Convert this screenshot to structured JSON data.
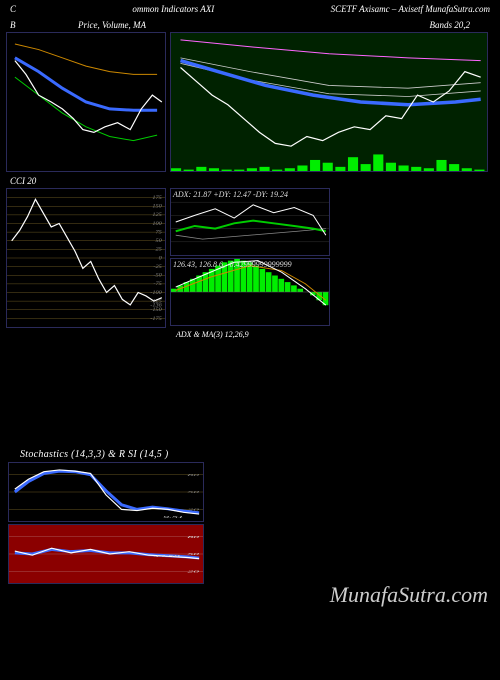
{
  "header": {
    "left": "C",
    "mid": "ommon Indicators AXI",
    "right": "SCETF Axisamc – Axisetf MunafaSutra.com"
  },
  "titles": {
    "row1_left": "B",
    "row1_mid": "Price, Volume, MA",
    "row1_right": "Bands 20,2",
    "cci": "CCI 20",
    "adx": "ADX  & MA(3) 12,26,9",
    "adx_sub": "ADX: 21.87 +DY: 12.47 -DY: 19.24",
    "macd": "126.43,  126.8          6,  -0.42999999999999",
    "stoch": "Stochastics                        (14,3,3) & R                        SI                                   (14,5                                       )"
  },
  "watermark": "MunafaSutra.com",
  "colors": {
    "bg": "#000000",
    "panel_border": "#2a2a5a",
    "green_bg": "#002200",
    "white_line": "#ffffff",
    "blue_line": "#3a6aff",
    "green_line": "#00cc00",
    "orange_line": "#cc8800",
    "magenta": "#ff66ff",
    "vol_green": "#00ee00",
    "grid": "#665522",
    "red_bg": "#8b0000"
  },
  "charts": {
    "top_left": {
      "xlim": [
        0,
        100
      ],
      "ylim": [
        0,
        100
      ],
      "white": [
        [
          5,
          80
        ],
        [
          12,
          70
        ],
        [
          20,
          55
        ],
        [
          28,
          50
        ],
        [
          35,
          45
        ],
        [
          42,
          38
        ],
        [
          48,
          30
        ],
        [
          55,
          28
        ],
        [
          62,
          32
        ],
        [
          70,
          35
        ],
        [
          78,
          30
        ],
        [
          85,
          45
        ],
        [
          92,
          55
        ],
        [
          98,
          50
        ]
      ],
      "blue": [
        [
          5,
          82
        ],
        [
          20,
          72
        ],
        [
          35,
          60
        ],
        [
          50,
          50
        ],
        [
          65,
          45
        ],
        [
          80,
          44
        ],
        [
          95,
          44
        ]
      ],
      "green": [
        [
          5,
          68
        ],
        [
          20,
          55
        ],
        [
          35,
          42
        ],
        [
          50,
          32
        ],
        [
          65,
          25
        ],
        [
          80,
          22
        ],
        [
          95,
          26
        ]
      ],
      "orange": [
        [
          5,
          92
        ],
        [
          20,
          88
        ],
        [
          35,
          82
        ],
        [
          50,
          76
        ],
        [
          65,
          72
        ],
        [
          80,
          70
        ],
        [
          95,
          70
        ]
      ],
      "line_widths": {
        "white": 1.2,
        "blue": 3,
        "green": 1,
        "orange": 1
      }
    },
    "top_right": {
      "xlim": [
        0,
        100
      ],
      "ylim": [
        0,
        100
      ],
      "white": [
        [
          3,
          75
        ],
        [
          8,
          65
        ],
        [
          13,
          55
        ],
        [
          18,
          48
        ],
        [
          23,
          38
        ],
        [
          28,
          28
        ],
        [
          33,
          20
        ],
        [
          38,
          18
        ],
        [
          43,
          25
        ],
        [
          48,
          22
        ],
        [
          53,
          28
        ],
        [
          58,
          32
        ],
        [
          63,
          30
        ],
        [
          68,
          40
        ],
        [
          73,
          38
        ],
        [
          78,
          55
        ],
        [
          83,
          50
        ],
        [
          88,
          58
        ],
        [
          93,
          72
        ],
        [
          98,
          68
        ]
      ],
      "blue": [
        [
          3,
          80
        ],
        [
          15,
          72
        ],
        [
          30,
          62
        ],
        [
          45,
          55
        ],
        [
          60,
          50
        ],
        [
          75,
          48
        ],
        [
          90,
          50
        ],
        [
          98,
          52
        ]
      ],
      "thin1": [
        [
          3,
          78
        ],
        [
          25,
          66
        ],
        [
          50,
          56
        ],
        [
          75,
          54
        ],
        [
          98,
          58
        ]
      ],
      "thin2": [
        [
          3,
          82
        ],
        [
          25,
          72
        ],
        [
          50,
          62
        ],
        [
          75,
          60
        ],
        [
          98,
          64
        ]
      ],
      "magenta": [
        [
          3,
          95
        ],
        [
          25,
          90
        ],
        [
          50,
          85
        ],
        [
          75,
          82
        ],
        [
          98,
          80
        ]
      ],
      "volume_bars": [
        2,
        1,
        3,
        2,
        1,
        1,
        2,
        3,
        1,
        2,
        4,
        8,
        6,
        3,
        10,
        5,
        12,
        6,
        4,
        3,
        2,
        8,
        5,
        2,
        1
      ],
      "vol_max": 20,
      "line_widths": {
        "white": 1.2,
        "blue": 3.5,
        "thin": 0.8,
        "magenta": 1
      }
    },
    "cci": {
      "xlim": [
        0,
        100
      ],
      "ylim": [
        -200,
        200
      ],
      "ticks": [
        175,
        150,
        125,
        100,
        75,
        50,
        25,
        0,
        -25,
        -50,
        -75,
        -100,
        -125,
        -136,
        -150,
        -175
      ],
      "line": [
        [
          3,
          50
        ],
        [
          8,
          80
        ],
        [
          13,
          120
        ],
        [
          18,
          170
        ],
        [
          23,
          130
        ],
        [
          28,
          90
        ],
        [
          33,
          100
        ],
        [
          38,
          60
        ],
        [
          43,
          20
        ],
        [
          48,
          -30
        ],
        [
          53,
          -10
        ],
        [
          58,
          -60
        ],
        [
          63,
          -100
        ],
        [
          68,
          -80
        ],
        [
          73,
          -120
        ],
        [
          78,
          -136
        ],
        [
          83,
          -100
        ],
        [
          88,
          -110
        ],
        [
          93,
          -125
        ],
        [
          98,
          -115
        ]
      ]
    },
    "adx": {
      "xlim": [
        0,
        100
      ],
      "ylim": [
        0,
        50
      ],
      "white": [
        [
          3,
          25
        ],
        [
          15,
          30
        ],
        [
          28,
          35
        ],
        [
          40,
          28
        ],
        [
          52,
          38
        ],
        [
          65,
          32
        ],
        [
          78,
          36
        ],
        [
          90,
          30
        ],
        [
          98,
          15
        ]
      ],
      "green": [
        [
          3,
          18
        ],
        [
          15,
          22
        ],
        [
          28,
          20
        ],
        [
          40,
          24
        ],
        [
          52,
          26
        ],
        [
          65,
          24
        ],
        [
          78,
          22
        ],
        [
          90,
          20
        ],
        [
          98,
          18
        ]
      ],
      "thin": [
        [
          3,
          15
        ],
        [
          20,
          12
        ],
        [
          40,
          14
        ],
        [
          60,
          16
        ],
        [
          80,
          18
        ],
        [
          98,
          20
        ]
      ]
    },
    "macd": {
      "xlim": [
        0,
        100
      ],
      "ylim": [
        -2,
        2
      ],
      "bars": [
        0.2,
        0.4,
        0.6,
        0.8,
        1.0,
        1.2,
        1.4,
        1.6,
        1.8,
        1.9,
        2.0,
        1.9,
        1.8,
        1.6,
        1.4,
        1.2,
        1.0,
        0.8,
        0.6,
        0.4,
        0.2,
        0.0,
        -0.2,
        -0.5,
        -0.8
      ],
      "white": [
        [
          3,
          0.3
        ],
        [
          20,
          1.0
        ],
        [
          40,
          1.8
        ],
        [
          55,
          1.9
        ],
        [
          70,
          1.2
        ],
        [
          85,
          0.2
        ],
        [
          98,
          -0.8
        ]
      ],
      "orange": [
        [
          3,
          0.1
        ],
        [
          25,
          0.9
        ],
        [
          50,
          1.6
        ],
        [
          70,
          1.3
        ],
        [
          85,
          0.5
        ],
        [
          98,
          -0.5
        ]
      ]
    },
    "stoch": {
      "xlim": [
        0,
        100
      ],
      "ylim": [
        0,
        100
      ],
      "ticks": [
        80,
        50,
        20
      ],
      "white": [
        [
          3,
          55
        ],
        [
          10,
          72
        ],
        [
          18,
          85
        ],
        [
          26,
          88
        ],
        [
          34,
          86
        ],
        [
          42,
          82
        ],
        [
          50,
          45
        ],
        [
          58,
          20
        ],
        [
          66,
          18
        ],
        [
          74,
          22
        ],
        [
          82,
          20
        ],
        [
          90,
          15
        ],
        [
          98,
          12
        ]
      ],
      "blue": [
        [
          3,
          50
        ],
        [
          10,
          68
        ],
        [
          18,
          82
        ],
        [
          26,
          86
        ],
        [
          34,
          85
        ],
        [
          42,
          80
        ],
        [
          50,
          52
        ],
        [
          58,
          28
        ],
        [
          66,
          20
        ],
        [
          74,
          24
        ],
        [
          82,
          21
        ],
        [
          90,
          17
        ],
        [
          98,
          14
        ]
      ],
      "last_label": "9.51"
    },
    "rsi": {
      "xlim": [
        0,
        100
      ],
      "ylim": [
        0,
        100
      ],
      "ticks": [
        80,
        50,
        20
      ],
      "white": [
        [
          3,
          55
        ],
        [
          12,
          48
        ],
        [
          22,
          60
        ],
        [
          32,
          52
        ],
        [
          42,
          58
        ],
        [
          52,
          50
        ],
        [
          62,
          54
        ],
        [
          72,
          48
        ],
        [
          82,
          46
        ],
        [
          92,
          44
        ],
        [
          98,
          42
        ]
      ],
      "blue": [
        [
          3,
          52
        ],
        [
          12,
          50
        ],
        [
          22,
          58
        ],
        [
          32,
          54
        ],
        [
          42,
          56
        ],
        [
          52,
          52
        ],
        [
          62,
          52
        ],
        [
          72,
          49
        ],
        [
          82,
          47
        ],
        [
          92,
          45
        ],
        [
          98,
          43
        ]
      ],
      "last_label": "44.50"
    }
  }
}
